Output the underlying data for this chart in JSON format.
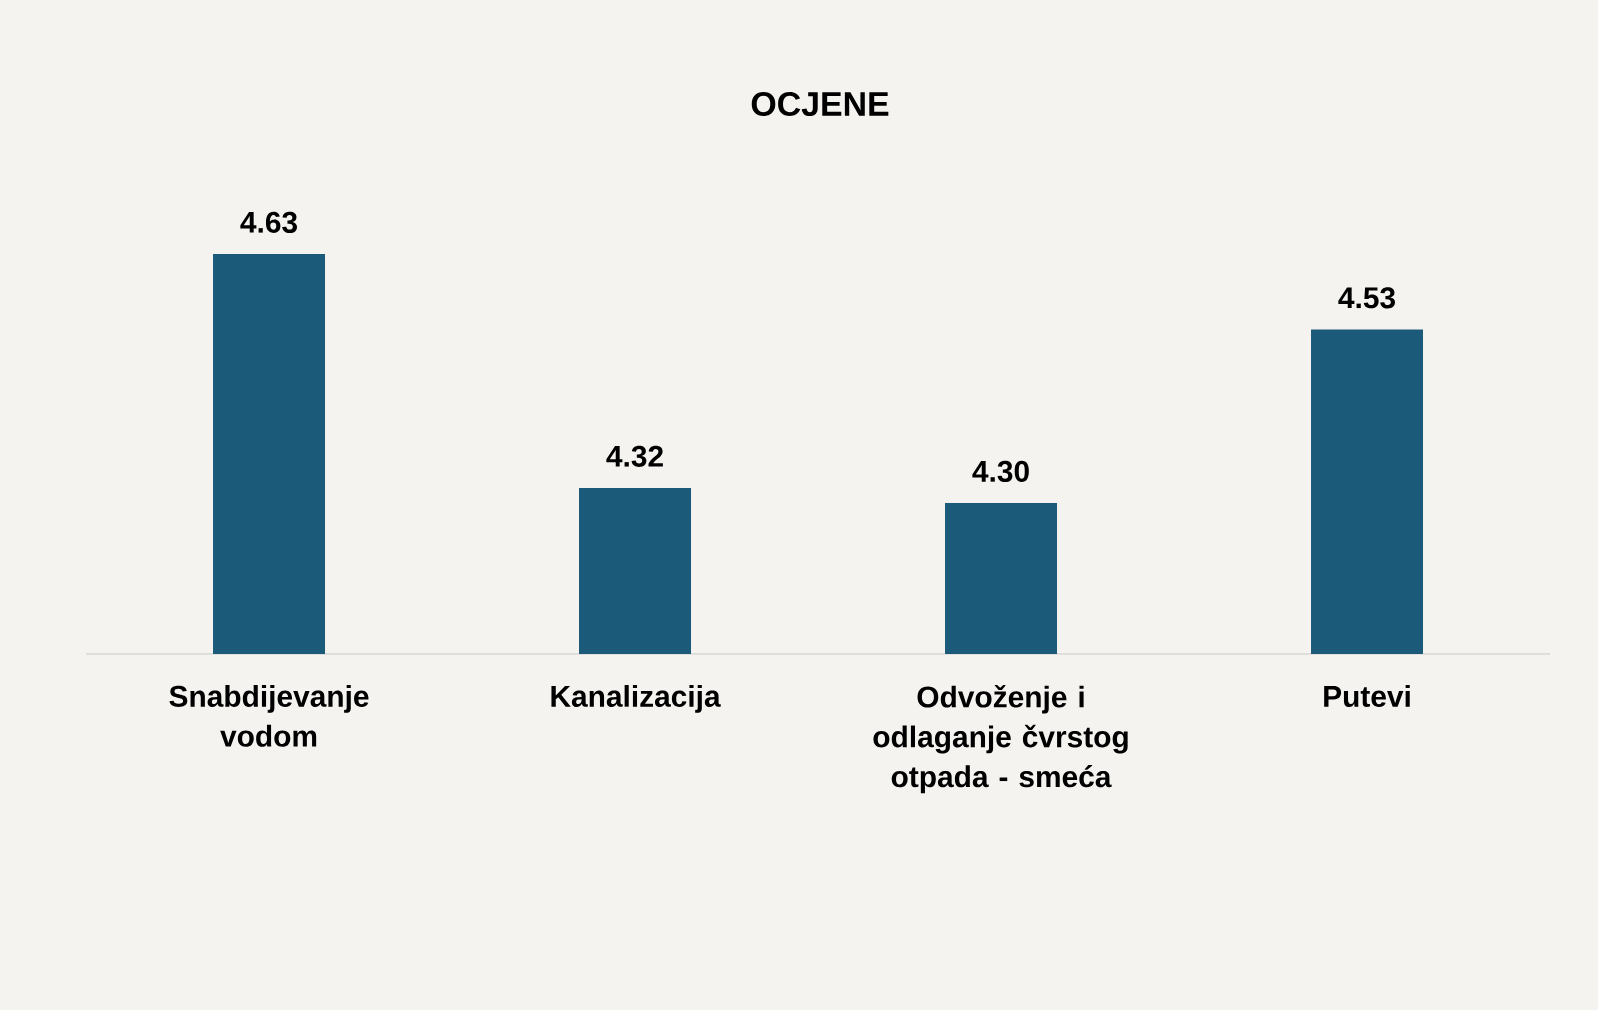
{
  "chart_data": {
    "type": "bar",
    "title": "OCJENE",
    "categories": [
      "Snabdijevanje vodom",
      "Kanalizacija",
      "Odvoženje i odlaganje čvrstog otpada - smeća",
      "Putevi"
    ],
    "values": [
      4.63,
      4.32,
      4.3,
      4.53
    ],
    "value_labels": [
      "4.63",
      "4.32",
      "4.30",
      "4.53"
    ],
    "color": "#1c5a7a",
    "ylim": [
      4.1,
      4.63
    ],
    "tick_labels": "x"
  }
}
